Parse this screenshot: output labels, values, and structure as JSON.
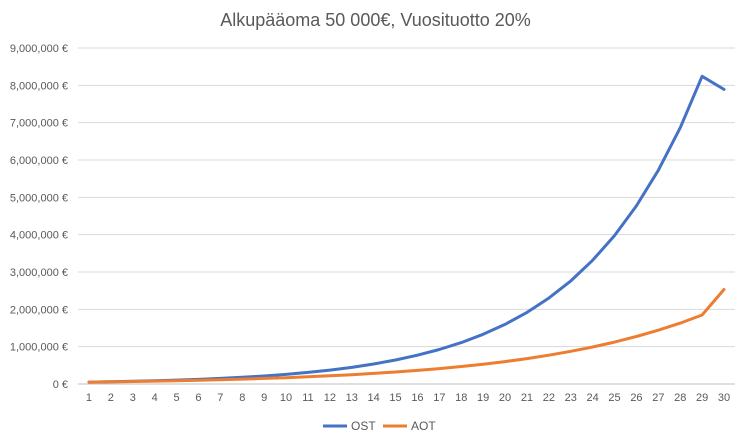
{
  "chart_data": {
    "type": "line",
    "title": "Alkupääoma 50 000€, Vuosituotto 20%",
    "xlabel": "",
    "ylabel": "",
    "ylim": [
      0,
      9000000
    ],
    "y_ticks": [
      0,
      1000000,
      2000000,
      3000000,
      4000000,
      5000000,
      6000000,
      7000000,
      8000000,
      9000000
    ],
    "y_tick_labels": [
      "0 €",
      "1,000,000 €",
      "2,000,000 €",
      "3,000,000 €",
      "4,000,000 €",
      "5,000,000 €",
      "6,000,000 €",
      "7,000,000 €",
      "8,000,000 €",
      "9,000,000 €"
    ],
    "categories": [
      "1",
      "2",
      "3",
      "4",
      "5",
      "6",
      "7",
      "8",
      "9",
      "10",
      "11",
      "12",
      "13",
      "14",
      "15",
      "16",
      "17",
      "18",
      "19",
      "20",
      "21",
      "22",
      "23",
      "24",
      "25",
      "26",
      "27",
      "28",
      "29",
      "30"
    ],
    "grid": true,
    "legend_position": "bottom",
    "series": [
      {
        "name": "OST",
        "color": "#4472C4",
        "values": [
          50000,
          60000,
          72000,
          86400,
          103680,
          124416,
          149299,
          179159,
          214991,
          257989,
          309587,
          371504,
          445805,
          534966,
          641959,
          770351,
          924421,
          1109306,
          1331167,
          1597400,
          1916880,
          2300256,
          2760307,
          3312369,
          3974842,
          4769811,
          5723773,
          6868528,
          8242233,
          7890000
        ]
      },
      {
        "name": "AOT",
        "color": "#ED7D31",
        "values": [
          50000,
          58000,
          67000,
          77000,
          88000,
          101000,
          115000,
          131000,
          149000,
          170000,
          193000,
          219000,
          249000,
          283000,
          321000,
          364000,
          413000,
          468000,
          530000,
          601000,
          681000,
          772000,
          875000,
          991000,
          1123000,
          1272000,
          1441000,
          1632000,
          1849000,
          2530000
        ]
      }
    ]
  }
}
